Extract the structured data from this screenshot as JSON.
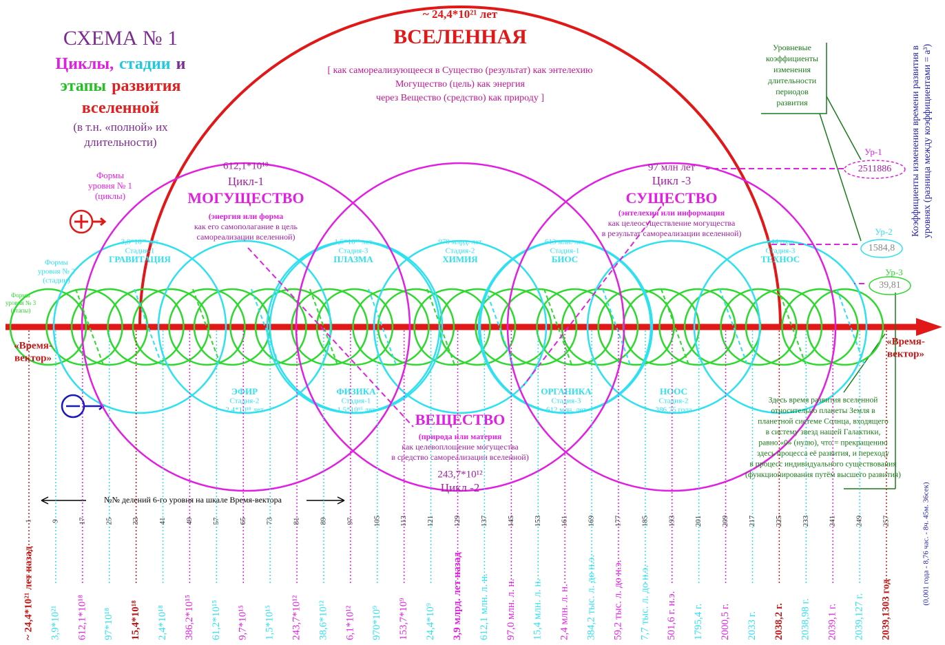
{
  "title": {
    "lines": [
      [
        {
          "text": "СХЕМА  № 1",
          "color": "#7b2c8f"
        }
      ],
      [
        {
          "text": "Циклы,",
          "color": "#e020e0"
        },
        {
          "text": "стадии",
          "color": "#20c8e0"
        },
        {
          "text": "и",
          "color": "#7b2c8f"
        }
      ],
      [
        {
          "text": "этапы",
          "color": "#22c022"
        },
        {
          "text": "развития",
          "color": "#e02020"
        }
      ],
      [
        {
          "text": "вселенной",
          "color": "#e02020"
        }
      ],
      [
        {
          "text": "(в т.н. «полной» их",
          "color": "#7b2c8f"
        }
      ],
      [
        {
          "text": "длительности)",
          "color": "#7b2c8f"
        }
      ]
    ]
  },
  "universe": {
    "duration": "~ 24,4*10²¹ лет",
    "name": "ВСЕЛЕННАЯ",
    "description": [
      "[ как самореализующееся в Существо (результат) как энтелехию",
      "Могущество (цель) как энергия",
      "через Вещество (средство) как природу ]"
    ]
  },
  "cycles": [
    {
      "duration": "612,1*10¹⁸",
      "name": "Цикл-1",
      "title": "МОГУЩЕСТВО",
      "description": [
        "(энергия или форма",
        "как его самополагание в цель",
        "самореализации вселенной)"
      ]
    },
    {
      "duration": "243,7*10¹²",
      "name": "Цикл -2",
      "title": "ВЕЩЕСТВО",
      "description": [
        "(природа или материя",
        "как целевоплощение могущества",
        "в средство самореализации вселенной)"
      ]
    },
    {
      "duration": "97 млн лет",
      "name": "Цикл -3",
      "title": "СУЩЕСТВО",
      "description": [
        "(энтелехия или информация",
        "как целеосуществление могущества",
        "в результат самореализации вселенной)"
      ]
    }
  ],
  "stages": [
    {
      "name": "ГРАВИТАЦИЯ",
      "stage": "Стадия-1",
      "duration": "3,8*10²¹ лет"
    },
    {
      "name": "ЭФИР",
      "stage": "Стадия-2",
      "duration": "2,4*10¹⁸ лет"
    },
    {
      "name": "ПЛАЗМА",
      "stage": "Стадия-3",
      "duration": "1,5*10¹⁸ лет"
    },
    {
      "name": "ФИЗИКА",
      "stage": "Стадия-1",
      "duration": "1,5*10¹⁵ лет"
    },
    {
      "name": "ХИМИЯ",
      "stage": "Стадия-2",
      "duration": "970 млрд. лет"
    },
    {
      "name": "БИОС",
      "stage": "Стадия-1",
      "duration": "613 млн. лет"
    },
    {
      "name": "ОРГАНИКА",
      "stage": "Стадия-3",
      "duration": "612 млн. лет"
    },
    {
      "name": "НООС",
      "stage": "Стадия-2",
      "duration": "386,75 года"
    },
    {
      "name": "ТЕХНОС",
      "stage": "Стадия-3",
      "duration": "244 года"
    }
  ],
  "levels": [
    [
      "Формы",
      "уровня № 1",
      "(циклы)"
    ],
    [
      "Формы",
      "уровня № 2",
      "(стадии)"
    ],
    [
      "Формы",
      "уровня № 3",
      "(этапы)"
    ]
  ],
  "coefficients": {
    "caption": [
      "Уровневые",
      "коэффициенты",
      "изменения",
      "длительности",
      "периодов",
      "развития"
    ],
    "items": [
      {
        "level": "Ур-1",
        "value": "2511886"
      },
      {
        "level": "Ур-2",
        "value": "1584,8"
      },
      {
        "level": "Ур-3",
        "value": "39,81"
      }
    ],
    "vertical": [
      "Коэффициенты изменения времени развития в",
      "уровнях  (разница между коэффициентами = a³)"
    ],
    "footnote": "(0,001 года - 8,76 час. - 8ч. 45м. 36сек)"
  },
  "axis": {
    "left": [
      "«Время-",
      "вектор»"
    ],
    "right": [
      "«Время-",
      "вектор»"
    ]
  },
  "divisions_caption": "№№ делений 6-го уровня на шкале Время-вектора",
  "divisions": [
    "1",
    "9",
    "17",
    "25",
    "33",
    "41",
    "49",
    "57",
    "65",
    "73",
    "81",
    "89",
    "97",
    "105",
    "113",
    "121",
    "129",
    "137",
    "145",
    "153",
    "161",
    "169",
    "177",
    "185",
    "193",
    "201",
    "209",
    "217",
    "225",
    "233",
    "241",
    "249",
    "257"
  ],
  "dates": [
    "~ 24,4*10²¹ лет назад",
    "3,9*10²¹",
    "612,1*10¹⁸",
    "97*10¹⁸",
    "15,4*10¹⁸",
    "2,4*10¹⁸",
    "386,2*10¹⁵",
    "61,2*10¹⁵",
    "9,7*10¹⁵",
    "1,5*10¹⁵",
    "243,7*10¹²",
    "38,6*10¹²",
    "6,1*10¹²",
    "970*10⁹",
    "153,7*10⁹",
    "24,4*10⁹",
    "3,9 млрд. лет назад",
    "612,1 млн. л. н.",
    "97,0 млн. л. н.",
    "15,4 млн. л. н.",
    "2,4 млн. л. н.",
    "384,2 тыс. л. до н.э.",
    "59,2 тыс. л. до н.э.",
    "7,7 тыс. л. до н.э.",
    "501,6 г. н.э.",
    "1795,4 г.",
    "2000,5 г.",
    "2033 г.",
    "2038,2 г.",
    "2038,98 г.",
    "2039,1 г.",
    "2039,127 г.",
    "2039,1303 год"
  ],
  "note": [
    "Здесь время развития вселенной",
    "относительно планеты Земля в",
    "планетной системе Солнца, входящего",
    "в систему звезд нашей Галактики,",
    "равно «0» (нулю), что = прекращению",
    "здесь процесса её развития, и переходу",
    "в процесс индивидуального существования",
    "(функционирования путём высшего развития)"
  ]
}
